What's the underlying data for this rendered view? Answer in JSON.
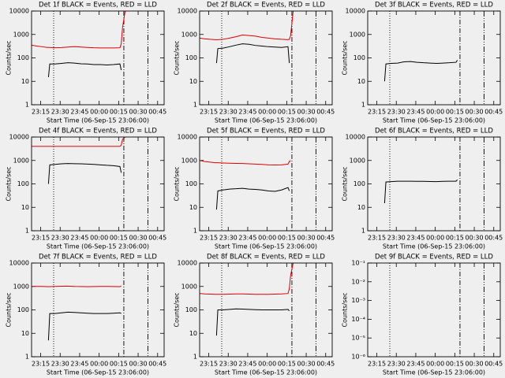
{
  "chart_data": [
    {
      "type": "line",
      "title": "Det 1f BLACK = Events, RED = LLD",
      "xlabel": "Start Time (06-Sep-15 23:06:00)",
      "ylabel": "Counts/sec",
      "x": [
        2,
        6,
        10,
        14,
        15,
        16,
        20,
        25,
        30,
        35,
        40,
        45,
        50,
        55,
        60,
        65,
        70,
        71,
        72,
        74
      ],
      "xlim": [
        2,
        104
      ],
      "xticks": [
        {
          "value": 9,
          "label": "23:15"
        },
        {
          "value": 24,
          "label": "23:30"
        },
        {
          "value": 39,
          "label": "23:45"
        },
        {
          "value": 54,
          "label": "00:00"
        },
        {
          "value": 69,
          "label": "00:15"
        },
        {
          "value": 84,
          "label": "00:30"
        },
        {
          "value": 99,
          "label": "00:45"
        }
      ],
      "ylim": [
        1,
        10000
      ],
      "yticks": [
        1,
        10,
        100,
        1000,
        10000
      ],
      "log_y": true,
      "vlines": [
        {
          "x": 19,
          "dash": "dotted"
        },
        {
          "x": 73,
          "dash": "dashdot"
        },
        {
          "x": 91.5,
          "dash": "dashdotdot"
        }
      ],
      "series": [
        {
          "color": "#000000",
          "values": [
            null,
            null,
            null,
            null,
            15,
            55,
            55,
            58,
            62,
            60,
            56,
            55,
            52,
            52,
            50,
            52,
            55,
            30,
            null,
            null
          ]
        },
        {
          "color": "#dd0000",
          "values": [
            350,
            320,
            300,
            280,
            280,
            280,
            270,
            275,
            290,
            300,
            290,
            280,
            270,
            265,
            265,
            265,
            270,
            400,
            2000,
            10000
          ]
        }
      ]
    },
    {
      "type": "line",
      "title": "Det 2f BLACK = Events, RED = LLD",
      "xlabel": "Start Time (06-Sep-15 23:06:00)",
      "ylabel": "Counts/sec",
      "x": [
        2,
        6,
        10,
        14,
        15,
        16,
        20,
        25,
        30,
        35,
        40,
        45,
        50,
        55,
        60,
        65,
        70,
        71,
        72,
        74
      ],
      "xlim": [
        2,
        104
      ],
      "xticks": [
        {
          "value": 9,
          "label": "23:15"
        },
        {
          "value": 24,
          "label": "23:30"
        },
        {
          "value": 39,
          "label": "23:45"
        },
        {
          "value": 54,
          "label": "00:00"
        },
        {
          "value": 69,
          "label": "00:15"
        },
        {
          "value": 84,
          "label": "00:30"
        },
        {
          "value": 99,
          "label": "00:45"
        }
      ],
      "ylim": [
        1,
        10000
      ],
      "yticks": [
        1,
        10,
        100,
        1000,
        10000
      ],
      "log_y": true,
      "vlines": [
        {
          "x": 19,
          "dash": "dotted"
        },
        {
          "x": 73,
          "dash": "dashdot"
        },
        {
          "x": 91.5,
          "dash": "dashdotdot"
        }
      ],
      "series": [
        {
          "color": "#000000",
          "values": [
            null,
            null,
            null,
            null,
            60,
            250,
            260,
            300,
            350,
            400,
            380,
            340,
            320,
            300,
            290,
            280,
            300,
            60,
            null,
            null
          ]
        },
        {
          "color": "#dd0000",
          "values": [
            700,
            650,
            620,
            600,
            600,
            600,
            620,
            700,
            800,
            950,
            900,
            850,
            750,
            700,
            650,
            620,
            600,
            620,
            900,
            10000
          ]
        }
      ]
    },
    {
      "type": "line",
      "title": "Det 3f BLACK = Events, RED = LLD",
      "xlabel": "Start Time (06-Sep-15 23:06:00)",
      "ylabel": "Counts/sec",
      "x": [
        2,
        6,
        10,
        14,
        15,
        16,
        20,
        25,
        30,
        35,
        40,
        45,
        50,
        55,
        60,
        65,
        70,
        71,
        72,
        74
      ],
      "xlim": [
        2,
        104
      ],
      "xticks": [
        {
          "value": 9,
          "label": "23:15"
        },
        {
          "value": 24,
          "label": "23:30"
        },
        {
          "value": 39,
          "label": "23:45"
        },
        {
          "value": 54,
          "label": "00:00"
        },
        {
          "value": 69,
          "label": "00:15"
        },
        {
          "value": 84,
          "label": "00:30"
        },
        {
          "value": 99,
          "label": "00:45"
        }
      ],
      "ylim": [
        1,
        10000
      ],
      "yticks": [
        1,
        10,
        100,
        1000,
        10000
      ],
      "log_y": true,
      "vlines": [
        {
          "x": 19,
          "dash": "dotted"
        },
        {
          "x": 73,
          "dash": "dashdot"
        },
        {
          "x": 91.5,
          "dash": "dashdotdot"
        }
      ],
      "series": [
        {
          "color": "#000000",
          "values": [
            null,
            null,
            null,
            null,
            10,
            55,
            58,
            60,
            68,
            70,
            65,
            62,
            60,
            58,
            60,
            62,
            65,
            80,
            null,
            null
          ]
        }
      ]
    },
    {
      "type": "line",
      "title": "Det 4f BLACK = Events, RED = LLD",
      "xlabel": "Start Time (06-Sep-15 23:06:00)",
      "ylabel": "Counts/sec",
      "x": [
        2,
        6,
        10,
        14,
        15,
        16,
        20,
        25,
        30,
        35,
        40,
        45,
        50,
        55,
        60,
        65,
        70,
        71,
        72,
        74
      ],
      "xlim": [
        2,
        104
      ],
      "xticks": [
        {
          "value": 9,
          "label": "23:15"
        },
        {
          "value": 24,
          "label": "23:30"
        },
        {
          "value": 39,
          "label": "23:45"
        },
        {
          "value": 54,
          "label": "00:00"
        },
        {
          "value": 69,
          "label": "00:15"
        },
        {
          "value": 84,
          "label": "00:30"
        },
        {
          "value": 99,
          "label": "00:45"
        }
      ],
      "ylim": [
        1,
        10000
      ],
      "yticks": [
        1,
        10,
        100,
        1000,
        10000
      ],
      "log_y": true,
      "vlines": [
        {
          "x": 19,
          "dash": "dotted"
        },
        {
          "x": 73,
          "dash": "dashdot"
        },
        {
          "x": 91.5,
          "dash": "dashdotdot"
        }
      ],
      "series": [
        {
          "color": "#000000",
          "values": [
            null,
            null,
            null,
            null,
            100,
            650,
            680,
            720,
            740,
            730,
            720,
            700,
            680,
            650,
            620,
            600,
            550,
            300,
            null,
            null
          ]
        },
        {
          "color": "#dd0000",
          "values": [
            4000,
            4000,
            4000,
            4000,
            4000,
            4000,
            4000,
            4000,
            4000,
            4000,
            4000,
            4000,
            4000,
            4000,
            4000,
            4000,
            4000,
            4500,
            8000,
            10000
          ]
        }
      ]
    },
    {
      "type": "line",
      "title": "Det 5f BLACK = Events, RED = LLD",
      "xlabel": "Start Time (06-Sep-15 23:06:00)",
      "ylabel": "Counts/sec",
      "x": [
        2,
        6,
        10,
        14,
        15,
        16,
        20,
        25,
        30,
        35,
        40,
        45,
        50,
        55,
        60,
        65,
        70,
        71,
        72,
        74
      ],
      "xlim": [
        2,
        104
      ],
      "xticks": [
        {
          "value": 9,
          "label": "23:15"
        },
        {
          "value": 24,
          "label": "23:30"
        },
        {
          "value": 39,
          "label": "23:45"
        },
        {
          "value": 54,
          "label": "00:00"
        },
        {
          "value": 69,
          "label": "00:15"
        },
        {
          "value": 84,
          "label": "00:30"
        },
        {
          "value": 99,
          "label": "00:45"
        }
      ],
      "ylim": [
        1,
        10000
      ],
      "yticks": [
        1,
        10,
        100,
        1000,
        10000
      ],
      "log_y": true,
      "vlines": [
        {
          "x": 19,
          "dash": "dotted"
        },
        {
          "x": 73,
          "dash": "dashdot"
        },
        {
          "x": 91.5,
          "dash": "dashdotdot"
        }
      ],
      "series": [
        {
          "color": "#000000",
          "values": [
            null,
            null,
            null,
            null,
            8,
            50,
            55,
            60,
            62,
            65,
            60,
            58,
            55,
            50,
            48,
            55,
            70,
            50,
            null,
            null
          ]
        },
        {
          "color": "#dd0000",
          "values": [
            1000,
            900,
            850,
            800,
            800,
            800,
            780,
            760,
            750,
            740,
            720,
            700,
            680,
            650,
            640,
            650,
            700,
            900,
            1000,
            null
          ]
        }
      ]
    },
    {
      "type": "line",
      "title": "Det 6f BLACK = Events, RED = LLD",
      "xlabel": "Start Time (06-Sep-15 23:06:00)",
      "ylabel": "Counts/sec",
      "x": [
        2,
        6,
        10,
        14,
        15,
        16,
        20,
        25,
        30,
        35,
        40,
        45,
        50,
        55,
        60,
        65,
        70,
        71,
        72,
        74
      ],
      "xlim": [
        2,
        104
      ],
      "xticks": [
        {
          "value": 9,
          "label": "23:15"
        },
        {
          "value": 24,
          "label": "23:30"
        },
        {
          "value": 39,
          "label": "23:45"
        },
        {
          "value": 54,
          "label": "00:00"
        },
        {
          "value": 69,
          "label": "00:15"
        },
        {
          "value": 84,
          "label": "00:30"
        },
        {
          "value": 99,
          "label": "00:45"
        }
      ],
      "ylim": [
        1,
        10000
      ],
      "yticks": [
        1,
        10,
        100,
        1000,
        10000
      ],
      "log_y": true,
      "vlines": [
        {
          "x": 19,
          "dash": "dotted"
        },
        {
          "x": 73,
          "dash": "dashdot"
        },
        {
          "x": 91.5,
          "dash": "dashdotdot"
        }
      ],
      "series": [
        {
          "color": "#000000",
          "values": [
            null,
            null,
            null,
            null,
            15,
            120,
            125,
            130,
            130,
            130,
            128,
            128,
            126,
            125,
            128,
            130,
            130,
            150,
            null,
            null
          ]
        }
      ]
    },
    {
      "type": "line",
      "title": "Det 7f BLACK = Events, RED = LLD",
      "xlabel": "Start Time (06-Sep-15 23:06:00)",
      "ylabel": "Counts/sec",
      "x": [
        2,
        6,
        10,
        14,
        15,
        16,
        20,
        25,
        30,
        35,
        40,
        45,
        50,
        55,
        60,
        65,
        70,
        71,
        72,
        74
      ],
      "xlim": [
        2,
        104
      ],
      "xticks": [
        {
          "value": 9,
          "label": "23:15"
        },
        {
          "value": 24,
          "label": "23:30"
        },
        {
          "value": 39,
          "label": "23:45"
        },
        {
          "value": 54,
          "label": "00:00"
        },
        {
          "value": 69,
          "label": "00:15"
        },
        {
          "value": 84,
          "label": "00:30"
        },
        {
          "value": 99,
          "label": "00:45"
        }
      ],
      "ylim": [
        1,
        10000
      ],
      "yticks": [
        1,
        10,
        100,
        1000,
        10000
      ],
      "log_y": true,
      "vlines": [
        {
          "x": 19,
          "dash": "dotted"
        },
        {
          "x": 73,
          "dash": "dashdot"
        },
        {
          "x": 91.5,
          "dash": "dashdotdot"
        }
      ],
      "series": [
        {
          "color": "#000000",
          "values": [
            null,
            null,
            null,
            null,
            5,
            70,
            70,
            75,
            80,
            78,
            75,
            72,
            70,
            70,
            70,
            72,
            75,
            70,
            null,
            null
          ]
        },
        {
          "color": "#dd0000",
          "values": [
            1000,
            1000,
            1000,
            980,
            980,
            980,
            1000,
            1020,
            1030,
            1000,
            990,
            980,
            990,
            1000,
            1000,
            990,
            980,
            1050,
            null,
            null
          ]
        }
      ]
    },
    {
      "type": "line",
      "title": "Det 8f BLACK = Events, RED = LLD",
      "xlabel": "Start Time (06-Sep-15 23:06:00)",
      "ylabel": "Counts/sec",
      "x": [
        2,
        6,
        10,
        14,
        15,
        16,
        20,
        25,
        30,
        35,
        40,
        45,
        50,
        55,
        60,
        65,
        70,
        71,
        72,
        74
      ],
      "xlim": [
        2,
        104
      ],
      "xticks": [
        {
          "value": 9,
          "label": "23:15"
        },
        {
          "value": 24,
          "label": "23:30"
        },
        {
          "value": 39,
          "label": "23:45"
        },
        {
          "value": 54,
          "label": "00:00"
        },
        {
          "value": 69,
          "label": "00:15"
        },
        {
          "value": 84,
          "label": "00:30"
        },
        {
          "value": 99,
          "label": "00:45"
        }
      ],
      "ylim": [
        1,
        10000
      ],
      "yticks": [
        1,
        10,
        100,
        1000,
        10000
      ],
      "log_y": true,
      "vlines": [
        {
          "x": 19,
          "dash": "dotted"
        },
        {
          "x": 73,
          "dash": "dashdot"
        },
        {
          "x": 91.5,
          "dash": "dashdotdot"
        }
      ],
      "series": [
        {
          "color": "#000000",
          "values": [
            null,
            null,
            null,
            null,
            8,
            100,
            100,
            105,
            110,
            108,
            105,
            102,
            100,
            100,
            100,
            100,
            105,
            90,
            null,
            null
          ]
        },
        {
          "color": "#dd0000",
          "values": [
            500,
            480,
            470,
            460,
            460,
            460,
            460,
            470,
            480,
            480,
            470,
            460,
            460,
            460,
            470,
            480,
            500,
            800,
            3000,
            10000
          ]
        }
      ]
    },
    {
      "type": "line",
      "title": "Det 9f BLACK = Events, RED = LLD",
      "xlabel": "Start Time (06-Sep-15 23:06:00)",
      "ylabel": "Counts/sec",
      "x": [
        2,
        6,
        10,
        14,
        15,
        16,
        20,
        25,
        30,
        35,
        40,
        45,
        50,
        55,
        60,
        65,
        70,
        71,
        72,
        74
      ],
      "xlim": [
        2,
        104
      ],
      "xticks": [
        {
          "value": 9,
          "label": "23:15"
        },
        {
          "value": 24,
          "label": "23:30"
        },
        {
          "value": 39,
          "label": "23:45"
        },
        {
          "value": 54,
          "label": "00:00"
        },
        {
          "value": 69,
          "label": "00:15"
        },
        {
          "value": 84,
          "label": "00:30"
        },
        {
          "value": 99,
          "label": "00:45"
        }
      ],
      "ylim": [
        1e-06,
        0.1
      ],
      "yticks": [
        {
          "value": 1e-06,
          "label": "10⁻⁶"
        },
        {
          "value": 1e-05,
          "label": "10⁻⁵"
        },
        {
          "value": 0.0001,
          "label": "10⁻⁴"
        },
        {
          "value": 0.001,
          "label": "10⁻³"
        },
        {
          "value": 0.01,
          "label": "10⁻²"
        },
        {
          "value": 0.1,
          "label": "10⁻¹"
        }
      ],
      "log_y": true,
      "vlines": [
        {
          "x": 19,
          "dash": "dotted"
        },
        {
          "x": 73,
          "dash": "dashdot"
        },
        {
          "x": 91.5,
          "dash": "dashdotdot"
        }
      ],
      "series": []
    }
  ]
}
